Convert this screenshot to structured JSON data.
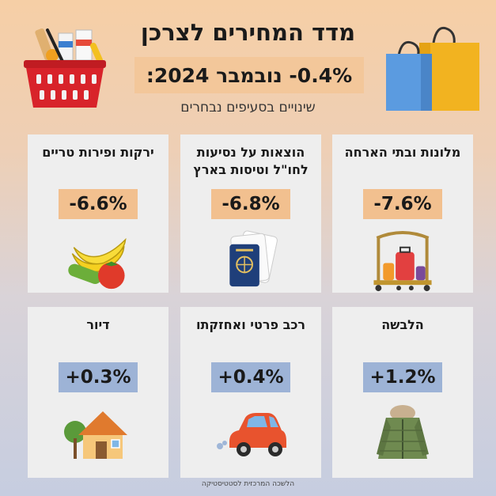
{
  "header": {
    "title": "מדד המחירים לצרכן",
    "headline_label": "נובמבר 2024:",
    "headline_value": "-0.4%",
    "subtitle": "שינויים בסעיפים נבחרים"
  },
  "cards": [
    {
      "label": "מלונות ובתי הארחה",
      "value": "-7.6%",
      "trend": "negative",
      "icon": "hotel-luggage-cart-icon"
    },
    {
      "label": "הוצאות על נסיעות לחו\"ל וטיסות בארץ",
      "value": "-6.8%",
      "trend": "negative",
      "icon": "passport-tickets-icon"
    },
    {
      "label": "ירקות ופירות טריים",
      "value": "-6.6%",
      "trend": "negative",
      "icon": "fruits-vegetables-icon"
    },
    {
      "label": "הלבשה",
      "value": "+1.2%",
      "trend": "positive",
      "icon": "winter-jacket-icon"
    },
    {
      "label": "רכב פרטי ואחזקתו",
      "value": "+0.4%",
      "trend": "positive",
      "icon": "car-icon"
    },
    {
      "label": "דיור",
      "value": "+0.3%",
      "trend": "positive",
      "icon": "house-icon"
    }
  ],
  "colors": {
    "negative": "#f2c08f",
    "positive": "#9db3d6",
    "card": "#eeeeee"
  },
  "footer": {
    "source": "הלשכה המרכזית לסטטיסטיקה"
  }
}
